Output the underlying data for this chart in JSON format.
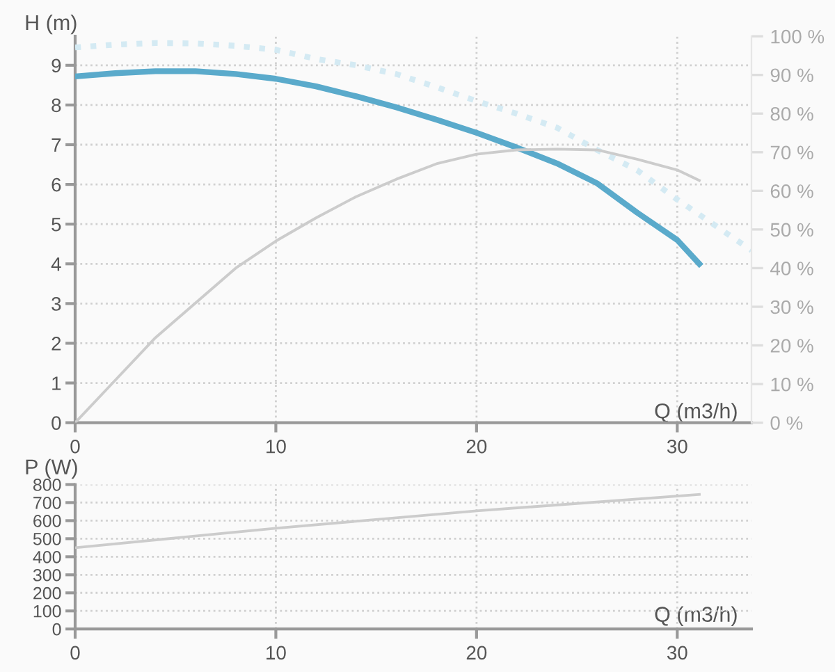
{
  "chart_data": [
    {
      "type": "line",
      "xlabel": "Q (m3/h)",
      "ylabel": "H (m)",
      "xlim": [
        0,
        33.7
      ],
      "xticks": [
        0,
        10,
        20,
        30
      ],
      "ylim": [
        0,
        9.73
      ],
      "yticks": [
        0,
        1,
        2,
        3,
        4,
        5,
        6,
        7,
        8,
        9
      ],
      "y2lim": [
        0,
        100
      ],
      "y2ticks": [
        {
          "value": 0,
          "label": "0 %"
        },
        {
          "value": 10,
          "label": "10 %"
        },
        {
          "value": 20,
          "label": "20 %"
        },
        {
          "value": 30,
          "label": "30 %"
        },
        {
          "value": 40,
          "label": "40 %"
        },
        {
          "value": 50,
          "label": "50 %"
        },
        {
          "value": 60,
          "label": "60 %"
        },
        {
          "value": 70,
          "label": "70 %"
        },
        {
          "value": 80,
          "label": "80 %"
        },
        {
          "value": 90,
          "label": "90 %"
        },
        {
          "value": 100,
          "label": "100 %"
        }
      ],
      "grid": true,
      "legend": false,
      "marker": "none",
      "series": [
        {
          "color": "#d4eaf3",
          "line_style": "dotted",
          "x": [
            0,
            2,
            4,
            6,
            8,
            10,
            12,
            14,
            16,
            18,
            20,
            22,
            24,
            26,
            28,
            30,
            33.7
          ],
          "values": [
            9.45,
            9.52,
            9.56,
            9.55,
            9.49,
            9.39,
            9.16,
            9.0,
            8.78,
            8.45,
            8.1,
            7.78,
            7.43,
            6.87,
            6.36,
            5.62,
            4.34
          ]
        },
        {
          "color": "#cccccc",
          "line_style": "solid",
          "axis": "y2",
          "x": [
            0,
            2,
            4,
            6,
            8,
            10,
            12,
            14,
            16,
            18,
            20,
            22,
            24,
            26,
            28,
            30,
            31.1
          ],
          "values": [
            0,
            11,
            22,
            31,
            40,
            47,
            53,
            58.5,
            63,
            67,
            69.5,
            70.6,
            70.8,
            70.6,
            68.2,
            65.4,
            62.7
          ]
        },
        {
          "color": "#5aaacb",
          "line_style": "solid",
          "x": [
            0,
            2,
            4,
            6,
            8,
            10,
            12,
            14,
            16,
            18,
            20,
            22,
            24,
            26,
            28,
            30,
            31.1
          ],
          "values": [
            8.72,
            8.8,
            8.85,
            8.85,
            8.78,
            8.66,
            8.47,
            8.22,
            7.94,
            7.63,
            7.3,
            6.93,
            6.53,
            6.03,
            5.29,
            4.6,
            4.0
          ]
        }
      ]
    },
    {
      "type": "line",
      "xlabel": "Q (m3/h)",
      "ylabel": "P (W)",
      "xlim": [
        0,
        33.7
      ],
      "xticks": [
        0,
        10,
        20,
        30
      ],
      "ylim": [
        0,
        800
      ],
      "yticks": [
        0,
        100,
        200,
        300,
        400,
        500,
        600,
        700,
        800
      ],
      "grid": true,
      "legend": false,
      "marker": "none",
      "series": [
        {
          "color": "#cccccc",
          "line_style": "solid",
          "x": [
            0,
            10,
            20,
            31.1
          ],
          "values": [
            450,
            558,
            654,
            745
          ]
        }
      ]
    }
  ]
}
